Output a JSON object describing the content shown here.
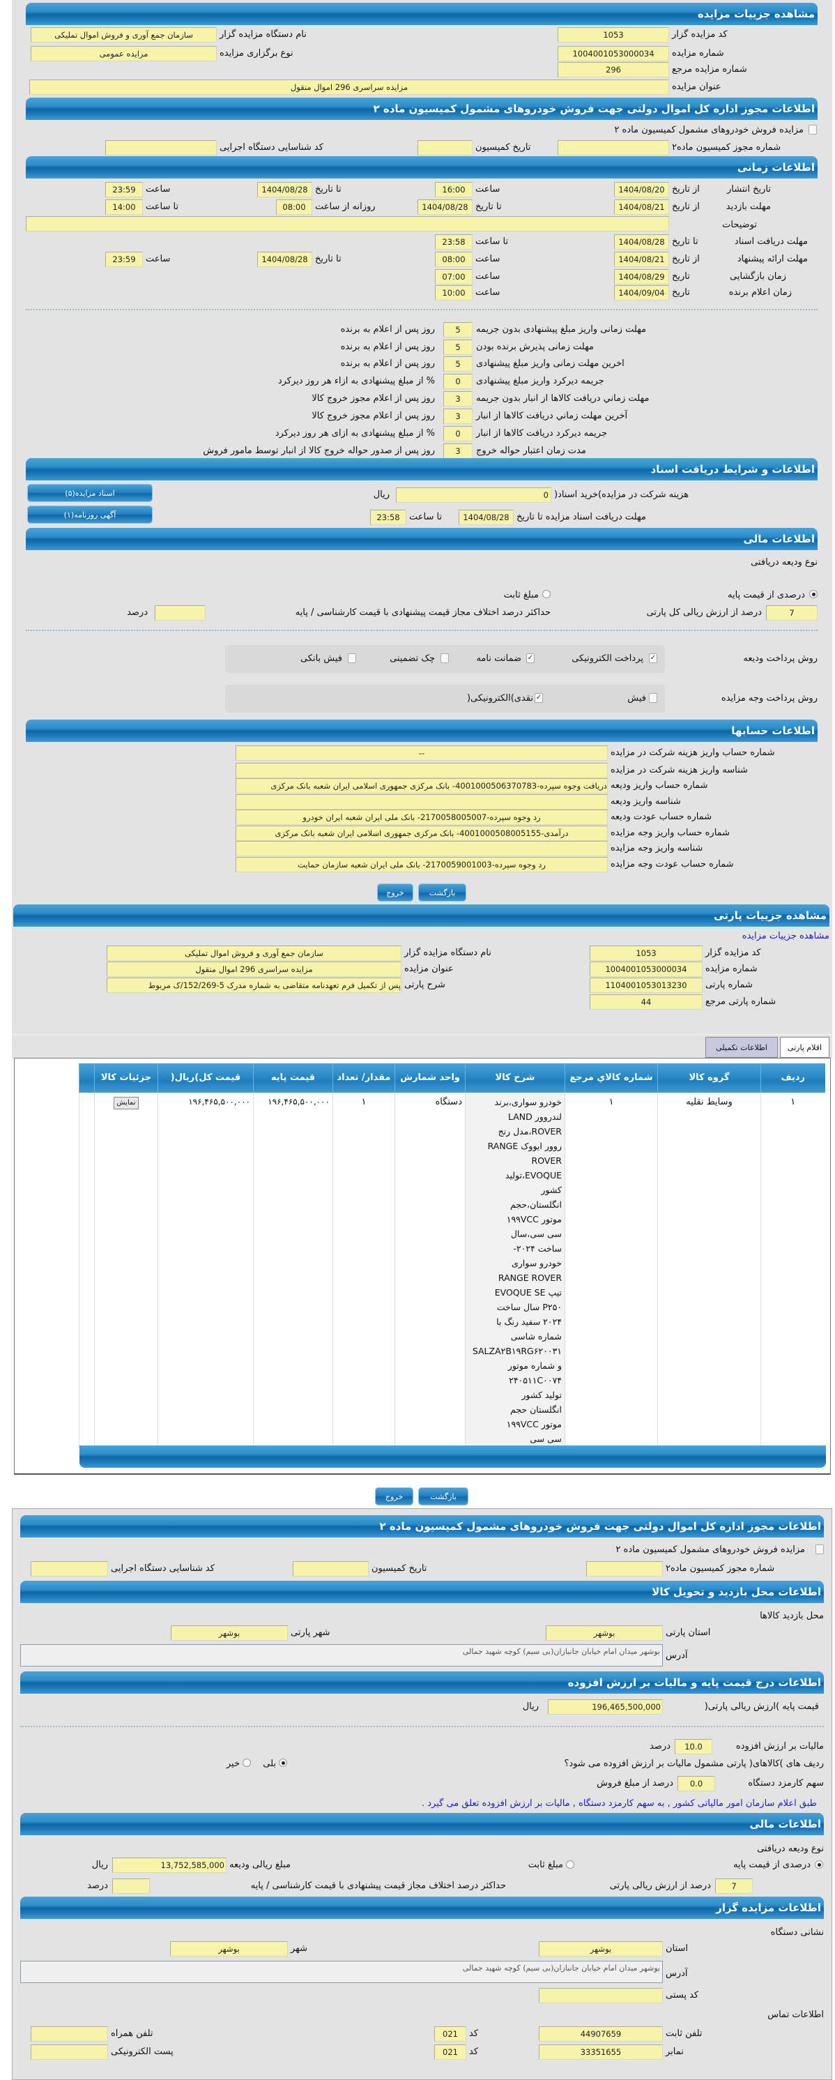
{
  "auction": {
    "title": "مشاهده جزییات مزایده",
    "auctioneer_code_label": "کد مزایده گزار",
    "auctioneer_code": "1053",
    "org_name_label": "نام دستگاه مزایده گزار",
    "org_name": "سازمان جمع آوری و فروش اموال تملیکی",
    "auction_number_label": "شماره مزایده",
    "auction_number": "1004001053000034",
    "auction_type_label": "نوع برگزاری مزایده",
    "auction_type": "مزایده عمومی",
    "ref_number_label": "شماره مزایده مرجع",
    "ref_number": "296",
    "auction_title_label": "عنوان مزایده",
    "auction_title": "مزایده سراسری 296 اموال منقول"
  },
  "permit": {
    "title": "اطلاعات مجوز اداره کل اموال دولتی جهت فروش خودروهای مشمول کمیسیون ماده ۲",
    "checkbox_label": "مزایده فروش خودروهای مشمول کمیسیون ماده ۲",
    "permit_number_label": "شماره مجوز کمیسیون ماده۲",
    "permit_number": "",
    "commission_date_label": "تاریخ کمیسیون",
    "commission_date": "",
    "exec_code_label": "کد شناسایی دستگاه اجرایی",
    "exec_code": ""
  },
  "timing": {
    "title": "اطلاعات زمانی",
    "from_date": "از تاریخ",
    "to_date": "تا تاریخ",
    "hour": "ساعت",
    "to_hour": "تا ساعت",
    "date": "تاریخ",
    "daily_from_hour": "روزانه از ساعت",
    "publish_label": "تاریخ انتشار",
    "publish_from": "1404/08/20",
    "publish_from_time": "16:00",
    "publish_to": "1404/08/28",
    "publish_to_time": "23:59",
    "visit_label": "مهلت بازدید",
    "visit_from": "1404/08/21",
    "visit_to": "1404/08/28",
    "visit_daily_from": "08:00",
    "visit_daily_to": "14:00",
    "notes_label": "توضیحات",
    "notes": "",
    "docs_label": "مهلت دریافت اسناد",
    "docs_to": "1404/08/28",
    "docs_to_time": "23:58",
    "offer_label": "مهلت ارائه پیشنهاد",
    "offer_from": "1404/08/21",
    "offer_from_time": "08:00",
    "offer_to": "1404/08/28",
    "offer_to_time": "23:59",
    "opening_label": "زمان بازگشایی",
    "opening_date": "1404/08/29",
    "opening_time": "07:00",
    "winner_label": "زمان اعلام برنده",
    "winner_date": "1404/09/04",
    "winner_time": "10:00"
  },
  "deadlines": [
    {
      "label": "مهلت زمانی واریز مبلغ پیشنهادی بدون جریمه",
      "value": "5",
      "suffix": "روز پس از اعلام به برنده"
    },
    {
      "label": "مهلت زمانی پذیرش برنده بودن",
      "value": "5",
      "suffix": "روز پس از اعلام به برنده"
    },
    {
      "label": "اخرین مهلت زمانی واریز مبلغ پیشنهادی",
      "value": "5",
      "suffix": "روز پس از اعلام به برنده"
    },
    {
      "label": "جریمه دیرکرد واریز مبلغ پیشنهادی",
      "value": "0",
      "suffix": "% از مبلغ پیشنهادی به ازاء هر روز دیرکرد"
    },
    {
      "label": "مهلت زماني دریافت کالاها از انبار بدون جریمه",
      "value": "3",
      "suffix": "روز پس از اعلام مجوز خروج کالا"
    },
    {
      "label": "آخرین مهلت زماني دریافت کالاها از انبار",
      "value": "3",
      "suffix": "روز پس از اعلام مجوز خروج کالا"
    },
    {
      "label": "جریمه دیرکرد دریافت کالاها از انبار",
      "value": "0",
      "suffix": "% از مبلغ پیشنهادی به ازای هر روز دیرکرد"
    },
    {
      "label": "مدت زمان اعتبار حواله خروج",
      "value": "3",
      "suffix": "روز پس از صدور حواله خروج کالا از انبار توسط مامور فروش"
    }
  ],
  "documents": {
    "title": "اطلاعات و شرایط دریافت اسناد",
    "fee_label": "هزینه شرکت در مزایده)خرید اسناد(",
    "fee": "0",
    "rial": "ریال",
    "deadline_label": "مهلت دریافت اسناد مزایده تا تاریخ",
    "deadline_date": "1404/08/28",
    "to_hour": "تا ساعت",
    "deadline_time": "23:58",
    "docs_button": "اسناد مزایده(۵)",
    "ads_button": "آگهی روزنامه(۱)"
  },
  "finance": {
    "title": "اطلاعات مالی",
    "deposit_type_label": "نوع ودیعه دریافتی",
    "percent_option": "درصدی از قیمت پایه",
    "fixed_option": "مبلغ ثابت",
    "percent_value": "7",
    "percent_suffix": "درصد از ارزش ریالی کل پارتی",
    "max_diff_label": "حداکثر درصد اختلاف مجاز قیمت پیشنهادی با قیمت کارشناسی / پایه",
    "max_diff": "",
    "percent_word": "درصد",
    "deposit_method_label": "روش پرداخت ودیعه",
    "deposit_methods": [
      {
        "label": "پرداخت الکترونیکی",
        "checked": true
      },
      {
        "label": "ضمانت نامه",
        "checked": true
      },
      {
        "label": "چک تضمینی",
        "checked": false
      },
      {
        "label": "فیش بانکی",
        "checked": false
      }
    ],
    "payment_method_label": "روش پرداخت وجه مزایده",
    "payment_methods": [
      {
        "label": "فیش",
        "checked": false
      },
      {
        "label": "نقدی)الکترونیکی(",
        "checked": true
      }
    ]
  },
  "accounts": {
    "title": "اطلاعات حسابها",
    "rows": [
      {
        "label": "شماره حساب واریز هزینه شرکت در مزایده",
        "value": "--"
      },
      {
        "label": "شناسه واریز هزینه شرکت در مزایده",
        "value": ""
      },
      {
        "label": "شماره حساب واریز ودیعه",
        "value": "دریافت وجوه سپرده-4001000506370783- بانک مرکزی جمهوری اسلامی ایران شعبه بانک مرکزی"
      },
      {
        "label": "شناسه واریز ودیعه",
        "value": ""
      },
      {
        "label": "شماره حساب عودت ودیعه",
        "value": "رد وجوه سپرده-2170058005007- بانک ملی ایران شعبه ایران خودرو"
      },
      {
        "label": "شماره حساب واریز وجه مزایده",
        "value": "درآمدی-4001000508005155- بانک مرکزی جمهوری اسلامی ایران شعبه بانک مرکزی"
      },
      {
        "label": "شناسه واریز وجه مزایده",
        "value": ""
      },
      {
        "label": "شماره حساب عودت وجه مزایده",
        "value": "رد وجوه سپرده-2170059001003- بانک ملی ایران شعبه سازمان حمایت"
      }
    ]
  },
  "actions": {
    "back": "بازگشت",
    "exit": "خروج"
  },
  "lot": {
    "title": "مشاهده جزییات پارتی",
    "auction_link": "مشاهده جزییات مزایده",
    "auctioneer_code_label": "کد مزایده گزار",
    "auctioneer_code": "1053",
    "org_name_label": "نام دستگاه مزایده گزار",
    "org_name": "سازمان جمع آوری و فروش اموال تملیکی",
    "auction_number_label": "شماره مزایده",
    "auction_number": "1004001053000034",
    "auction_title_label": "عنوان مزایده",
    "auction_title": "مزایده سراسری 296 اموال منقول",
    "lot_number_label": "شماره پارتی",
    "lot_number": "1104001053013230",
    "lot_desc_label": "شرح پارتی",
    "lot_desc": "پس از تکمیل فرم تعهدنامه متقاضی به شماره مدرک 5-152/269/ک مربوط",
    "lot_ref_label": "شماره پارتی مرجع",
    "lot_ref": "44",
    "tabs": [
      {
        "label": "اقلام پارتی",
        "active": true
      },
      {
        "label": "اطلاعات تکمیلی",
        "active": false
      }
    ]
  },
  "items_table": {
    "headers": [
      "ردیف",
      "گروه کالا",
      "شماره کالاي مرجع",
      "شرح کالا",
      "واحد شمارش",
      "مقدار/ تعداد",
      "قیمت پایه",
      "قیمت کل)ریال(",
      "جزئیات کالا"
    ],
    "rows": [
      {
        "row": "۱",
        "group": "وسایط نقلیه",
        "ref": "۱",
        "desc": "خودرو سواری،برند\nلندروور  LAND\nROVER،مدل رنج\nروور ایووک  RANGE\nROVER\nEVOQUE،تولید\nکشور\nانگلستان،حجم\nموتور ۱۹۹VCC\nسی سی،سال\nساخت ۲۰۲۴-\nخودرو سواری\nRANGE ROVER\nتیپ  EVOQUE SE\nP۲۵۰ سال ساخت\n۲۰۲۴ سفید رنگ با\nشماره شاسی\nSALZA۲B۱۹RG۶۲۰۰۳۱\nو شماره موتور\n۲۴۰۵۱۱C۰۰۷۴\nتولید کشور\nانگلستان حجم\nموتور ۱۹۹VCC\nسی سی",
        "unit": "دستگاه",
        "qty": "۱",
        "base_price": "۱۹۶,۴۶۵,۵۰۰,۰۰۰",
        "total_price": "۱۹۶,۴۶۵,۵۰۰,۰۰۰",
        "details_button": "نمایش"
      }
    ]
  },
  "permit2": {
    "title": "اطلاعات مجوز اداره کل اموال دولتی جهت فروش خودروهای مشمول کمیسیون ماده ۲",
    "checkbox_label": "مزایده فروش خودروهای مشمول کمیسیون ماده ۲",
    "permit_number_label": "شماره مجوز کمیسیون ماده۲",
    "permit_number": "",
    "commission_date_label": "تاریخ کمیسیون",
    "commission_date": "",
    "exec_code_label": "کد شناسایی دستگاه اجرایی",
    "exec_code": ""
  },
  "visit_location": {
    "title": "اطلاعات محل بازدید و تحویل کالا",
    "heading": "محل بازدید کالاها",
    "province_label": "استان پارتی",
    "province": "بوشهر",
    "city_label": "شهر پارتی",
    "city": "بوشهر",
    "address_label": "آدرس",
    "address": "بوشهر میدان امام خیابان جانبازان(بی سیم) کوچه شهید جمالی"
  },
  "pricing": {
    "title": "اطلاعات درج قیمت پایه و مالیات بر ارزش افزوده",
    "base_price_label": "قیمت پایه )ارزش ریالی پارتی(",
    "base_price": "196,465,500,000",
    "rial": "ریال",
    "vat_label": "مالیات بر ارزش افزوده",
    "vat": "10.0",
    "percent_word": "درصد",
    "vat_question": "ردیف های )کالاهای( پارتی مشمول مالیات بر ارزش افزوده می شود؟",
    "yes": "بلی",
    "no": "خیر",
    "vat_applies": true,
    "fee_label": "سهم کارمزد دستگاه",
    "fee": "0.0",
    "fee_suffix": "درصد از مبلغ فروش",
    "note": "طبق اعلام سازمان امور مالیاتی کشور , به سهم کارمزد دستگاه , مالیات بر ارزش افزوده تعلق می گیرد ."
  },
  "finance2": {
    "title": "اطلاعات مالی",
    "deposit_type_label": "نوع ودیعه دریافتی",
    "percent_option": "درصدی از قیمت پایه",
    "fixed_option": "مبلغ ثابت",
    "deposit_amount_label": "مبلغ ریالی ودیعه",
    "deposit_amount": "13,752,585,000",
    "rial": "ریال",
    "percent_value": "7",
    "percent_suffix": "درصد از ارزش ریالی پارتی",
    "max_diff_label": "حداکثر درصد اختلاف مجاز قیمت پیشنهادی با قیمت کارشناسی / پایه",
    "max_diff": "",
    "percent_word": "درصد"
  },
  "auctioneer": {
    "title": "اطلاعات مزایده گزار",
    "address_heading": "نشانی دستگاه",
    "province_label": "استان",
    "province": "بوشهر",
    "city_label": "شهر",
    "city": "بوشهر",
    "address_label": "آدرس",
    "address": "بوشهر میدان امام خیابان جانبازان(بی سیم) کوچه شهید جمالی",
    "postal_label": "کد پستی",
    "postal": "",
    "contact_heading": "اطلاعات تماس",
    "phone_label": "تلفن ثابت",
    "phone": "44907659",
    "code_label": "کد",
    "phone_code": "021",
    "mobile_label": "تلفن همراه",
    "mobile": "",
    "fax_label": "نمابر",
    "fax": "33351655",
    "fax_code": "021",
    "email_label": "پست الکترونیکی",
    "email": ""
  }
}
